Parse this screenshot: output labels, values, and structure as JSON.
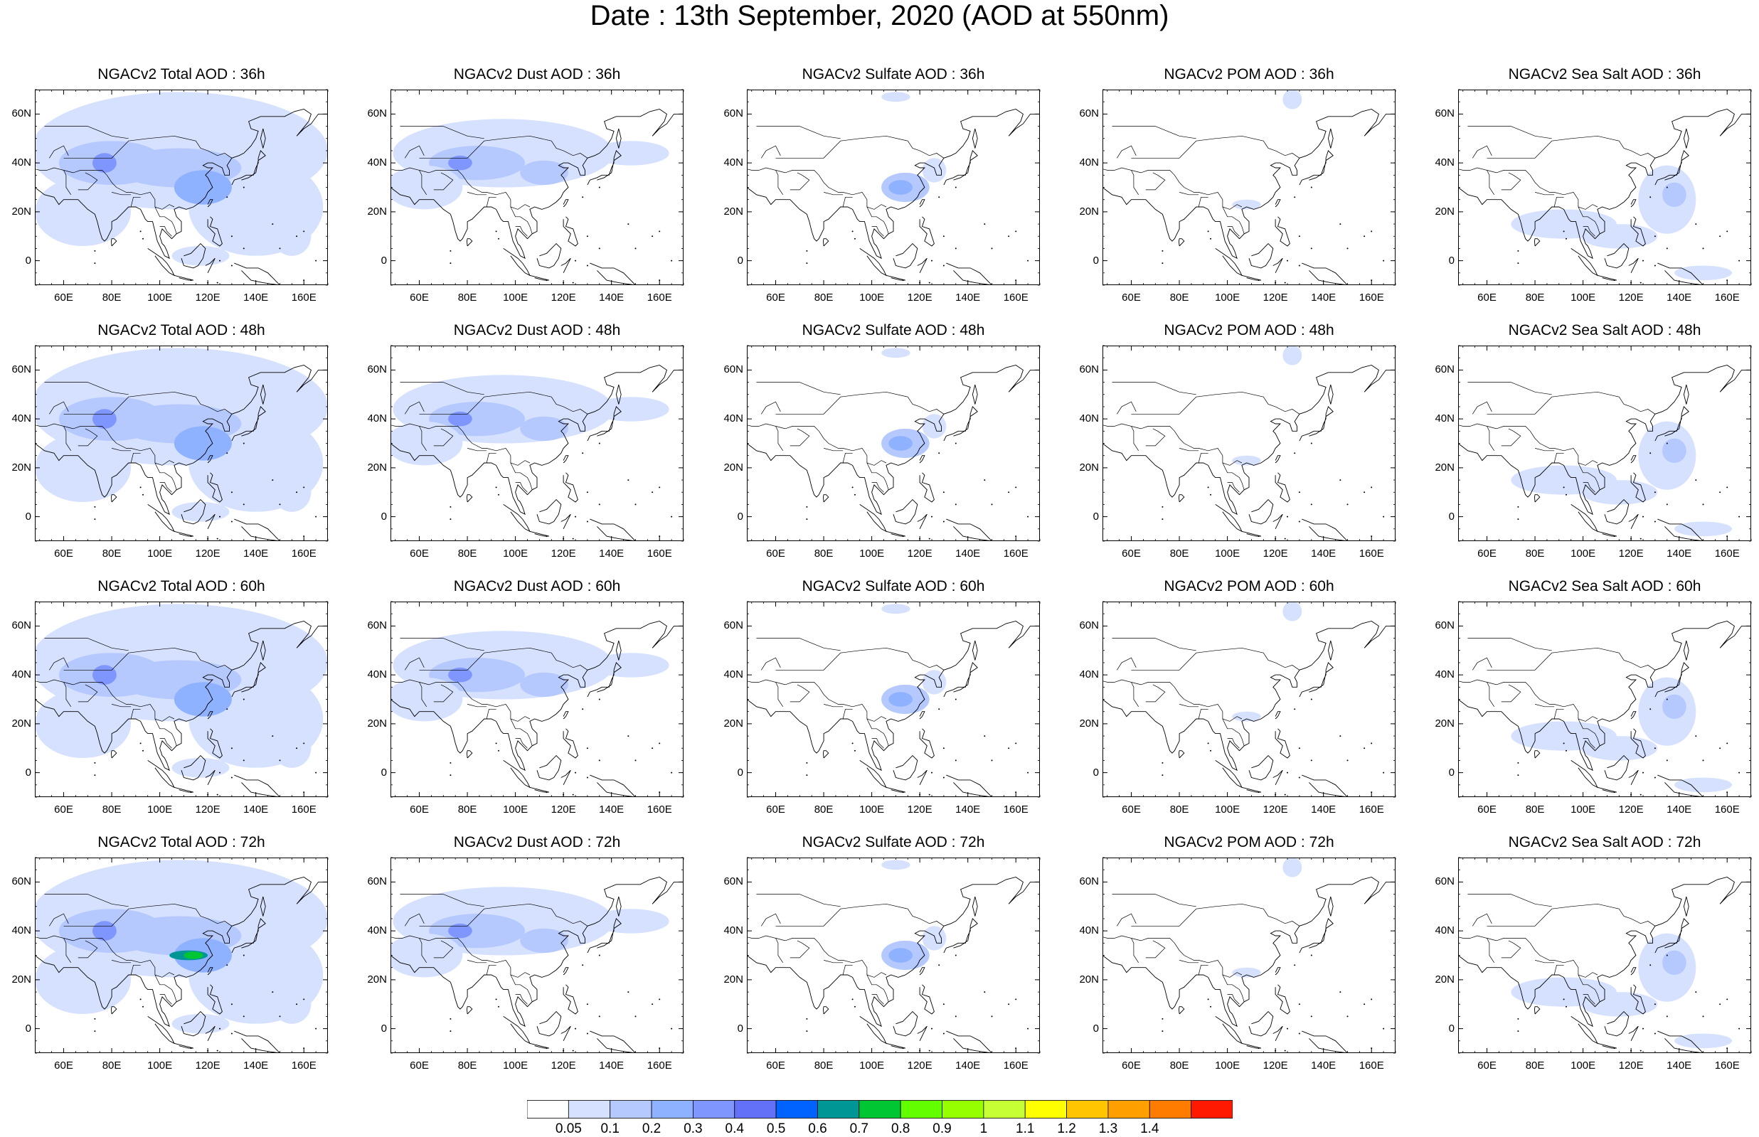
{
  "title": "Date : 13th September, 2020 (AOD at 550nm)",
  "panels": [
    {
      "title": "NGACv2 Total AOD : 36h",
      "variant": "total",
      "hour": 36
    },
    {
      "title": "NGACv2 Dust AOD : 36h",
      "variant": "dust",
      "hour": 36
    },
    {
      "title": "NGACv2 Sulfate AOD : 36h",
      "variant": "sulfate",
      "hour": 36
    },
    {
      "title": "NGACv2 POM AOD : 36h",
      "variant": "pom",
      "hour": 36
    },
    {
      "title": "NGACv2 Sea Salt AOD : 36h",
      "variant": "seasalt",
      "hour": 36
    },
    {
      "title": "NGACv2 Total AOD : 48h",
      "variant": "total",
      "hour": 48
    },
    {
      "title": "NGACv2 Dust AOD : 48h",
      "variant": "dust",
      "hour": 48
    },
    {
      "title": "NGACv2 Sulfate AOD : 48h",
      "variant": "sulfate",
      "hour": 48
    },
    {
      "title": "NGACv2 POM AOD : 48h",
      "variant": "pom",
      "hour": 48
    },
    {
      "title": "NGACv2 Sea Salt AOD : 48h",
      "variant": "seasalt",
      "hour": 48
    },
    {
      "title": "NGACv2 Total AOD : 60h",
      "variant": "total",
      "hour": 60
    },
    {
      "title": "NGACv2 Dust AOD : 60h",
      "variant": "dust",
      "hour": 60
    },
    {
      "title": "NGACv2 Sulfate AOD : 60h",
      "variant": "sulfate",
      "hour": 60
    },
    {
      "title": "NGACv2 POM AOD : 60h",
      "variant": "pom",
      "hour": 60
    },
    {
      "title": "NGACv2 Sea Salt AOD : 60h",
      "variant": "seasalt",
      "hour": 60
    },
    {
      "title": "NGACv2 Total AOD : 72h",
      "variant": "total",
      "hour": 72
    },
    {
      "title": "NGACv2 Dust AOD : 72h",
      "variant": "dust",
      "hour": 72
    },
    {
      "title": "NGACv2 Sulfate AOD : 72h",
      "variant": "sulfate",
      "hour": 72
    },
    {
      "title": "NGACv2 POM AOD : 72h",
      "variant": "pom",
      "hour": 72
    },
    {
      "title": "NGACv2 Sea Salt  AOD : 72h",
      "variant": "seasalt",
      "hour": 72
    }
  ],
  "axes": {
    "lat_labels": [
      "60N",
      "40N",
      "20N",
      "0"
    ],
    "lat_values": [
      60,
      40,
      20,
      0
    ],
    "lon_labels": [
      "60E",
      "80E",
      "100E",
      "120E",
      "140E",
      "160E"
    ],
    "lon_values": [
      60,
      80,
      100,
      120,
      140,
      160
    ],
    "lon_range": [
      48,
      170
    ],
    "lat_range": [
      -10,
      70
    ]
  },
  "colorbar": {
    "labels": [
      "0.05",
      "0.1",
      "0.2",
      "0.3",
      "0.4",
      "0.5",
      "0.6",
      "0.7",
      "0.8",
      "0.9",
      "1",
      "1.1",
      "1.2",
      "1.3",
      "1.4"
    ],
    "colors": [
      "#ffffff",
      "#d6e1ff",
      "#b5c9ff",
      "#8eb2ff",
      "#7f96ff",
      "#6370f8",
      "#0063ff",
      "#009696",
      "#00c633",
      "#63ff00",
      "#96ff00",
      "#c6ff33",
      "#ffff00",
      "#ffc600",
      "#ffa000",
      "#ff7c00",
      "#ff1900"
    ]
  }
}
